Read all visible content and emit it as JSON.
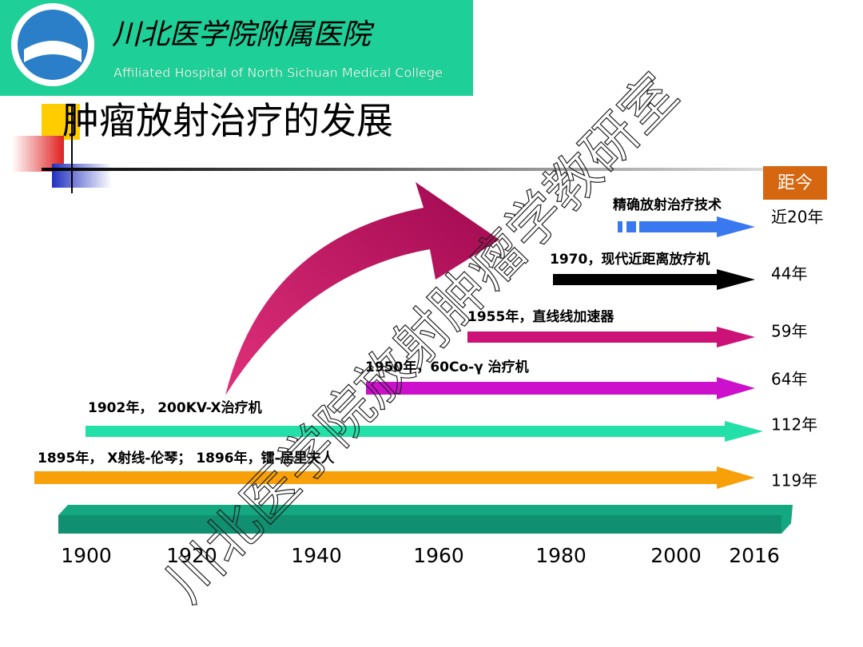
{
  "header": {
    "name": "川北医学院附属医院",
    "english": "Affiliated Hospital of North Sichuan Medical College"
  },
  "title": "肿瘤放射治疗的发展",
  "ago_header": "距今",
  "events": [
    {
      "label": "精确放射治疗技术",
      "ago": "近20年"
    },
    {
      "label": "1970，现代近距离放疗机",
      "ago": "44年"
    },
    {
      "label": "1955年，直线线加速器",
      "ago": "59年"
    },
    {
      "label": "1950年，60Co-γ 治疗机",
      "ago": "64年"
    },
    {
      "label": "1902年， 200KV-X治疗机",
      "ago": "112年"
    },
    {
      "label": "1895年， X射线-伦琴； 1896年，镭-居里夫人",
      "ago": "119年"
    }
  ],
  "years": [
    "1900",
    "1920",
    "1940",
    "1960",
    "1980",
    "2000",
    "2016"
  ],
  "watermark": "川北医学院放射肿瘤学教研室"
}
